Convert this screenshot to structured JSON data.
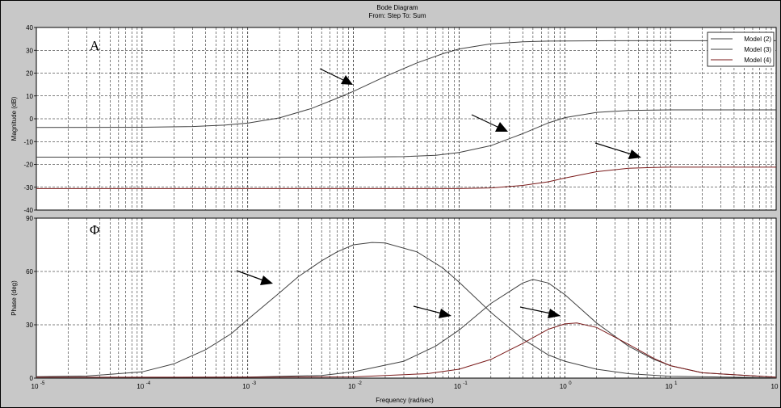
{
  "chart_data": [
    {
      "type": "line",
      "title": "Bode Diagram",
      "subtitle": "From: Step To: Sum",
      "panel_letter": "A",
      "xlabel": "",
      "ylabel": "Magnitude (dB)",
      "xscale": "log",
      "xlim": [
        1e-05,
        100
      ],
      "ylim": [
        -40,
        40
      ],
      "yticks": [
        -40,
        -30,
        -20,
        -10,
        0,
        10,
        20,
        30,
        40
      ],
      "grid": true,
      "legend_position": "top-right",
      "series": [
        {
          "name": "Model (2)",
          "color": "#404040",
          "x": [
            1e-05,
            0.0001,
            0.0003,
            0.0006,
            0.001,
            0.002,
            0.004,
            0.007,
            0.01,
            0.02,
            0.04,
            0.07,
            0.1,
            0.2,
            0.4,
            0.7,
            1,
            3,
            10,
            100
          ],
          "y": [
            -3.8,
            -3.7,
            -3.4,
            -2.8,
            -1.9,
            0.4,
            4.5,
            9.0,
            12.0,
            18.5,
            24.5,
            28.5,
            30.6,
            32.8,
            33.7,
            34.0,
            34.1,
            34.2,
            34.2,
            34.2
          ]
        },
        {
          "name": "Model (3)",
          "color": "#404040",
          "x": [
            1e-05,
            0.01,
            0.03,
            0.06,
            0.1,
            0.2,
            0.4,
            0.7,
            1,
            2,
            4,
            7,
            10,
            100
          ],
          "y": [
            -16.8,
            -16.8,
            -16.6,
            -16.0,
            -14.8,
            -11.8,
            -6.5,
            -1.8,
            0.5,
            2.8,
            3.6,
            3.8,
            3.9,
            3.9
          ]
        },
        {
          "name": "Model (4)",
          "color": "#7a1a1a",
          "x": [
            1e-05,
            0.1,
            0.2,
            0.4,
            0.7,
            1,
            2,
            4,
            7,
            10,
            100
          ],
          "y": [
            -30.6,
            -30.6,
            -30.3,
            -29.2,
            -27.6,
            -26.0,
            -23.2,
            -21.7,
            -21.3,
            -21.2,
            -21.2
          ]
        }
      ]
    },
    {
      "type": "line",
      "panel_letter": "Φ",
      "xlabel": "Frequency (rad/sec)",
      "ylabel": "Phase (deg)",
      "xscale": "log",
      "xlim": [
        1e-05,
        100
      ],
      "ylim": [
        0,
        90
      ],
      "yticks": [
        0,
        30,
        60,
        90
      ],
      "xticks": [
        "10",
        "10",
        "10",
        "10",
        "10",
        "10",
        "10",
        "10"
      ],
      "xtick_exponents": [
        "-5",
        "-4",
        "-3",
        "-2",
        "-1",
        "0",
        "1",
        "2"
      ],
      "grid": true,
      "series": [
        {
          "name": "Model (2)",
          "color": "#404040",
          "x": [
            1e-05,
            3e-05,
            0.0001,
            0.0002,
            0.0004,
            0.0007,
            0.001,
            0.002,
            0.003,
            0.005,
            0.007,
            0.01,
            0.015,
            0.02,
            0.04,
            0.07,
            0.1,
            0.2,
            0.4,
            0.7,
            1,
            2,
            4,
            10,
            100
          ],
          "y": [
            0.8,
            1.2,
            3.5,
            8.0,
            16.0,
            25.0,
            33.0,
            48.0,
            57.0,
            66.0,
            71.0,
            75.0,
            76.3,
            76.0,
            71.0,
            62.0,
            54.0,
            37.0,
            22.0,
            13.0,
            9.5,
            5.0,
            2.5,
            1.0,
            0.2
          ]
        },
        {
          "name": "Model (3)",
          "color": "#404040",
          "x": [
            1e-05,
            0.001,
            0.005,
            0.01,
            0.03,
            0.06,
            0.1,
            0.2,
            0.4,
            0.5,
            0.7,
            1,
            2,
            4,
            7,
            10,
            20,
            100
          ],
          "y": [
            0.2,
            0.6,
            1.5,
            3.5,
            9.5,
            18.0,
            27.0,
            42.0,
            53.5,
            55.5,
            53.5,
            47.0,
            31.0,
            18.0,
            10.5,
            7.0,
            3.0,
            0.5
          ]
        },
        {
          "name": "Model (4)",
          "color": "#7a1a1a",
          "x": [
            1e-05,
            0.001,
            0.01,
            0.05,
            0.1,
            0.2,
            0.4,
            0.7,
            1,
            1.3,
            2,
            4,
            7,
            10,
            20,
            100
          ],
          "y": [
            0.5,
            0.5,
            0.7,
            2.5,
            5.0,
            10.5,
            19.5,
            27.5,
            30.5,
            31.0,
            28.5,
            19.0,
            11.0,
            7.0,
            3.0,
            0.5
          ]
        }
      ]
    }
  ],
  "legend": {
    "items": [
      "Model (2)",
      "Model (3)",
      "Model (4)"
    ]
  }
}
